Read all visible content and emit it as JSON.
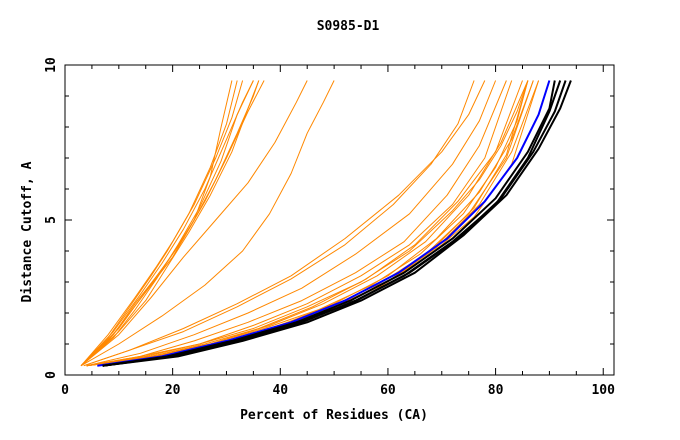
{
  "chart_data": {
    "type": "line",
    "title": "S0985-D1",
    "xlabel": "Percent of Residues (CA)",
    "ylabel": "Distance Cutoff, A",
    "xlim": [
      0,
      102
    ],
    "ylim": [
      0,
      10
    ],
    "x_ticks": [
      "0",
      "20",
      "40",
      "60",
      "80",
      "100"
    ],
    "y_ticks": [
      "0",
      "5",
      "10"
    ],
    "grid": false,
    "legend": "none",
    "colors": {
      "orange": "#ff8800",
      "black": "#000000",
      "blue": "#0000ff"
    },
    "series": [
      {
        "color": "orange",
        "points": [
          [
            3.0,
            0.3
          ],
          [
            8,
            1.3
          ],
          [
            13,
            2.5
          ],
          [
            17,
            3.5
          ],
          [
            20,
            4.3
          ],
          [
            24,
            5.5
          ],
          [
            28,
            7.0
          ],
          [
            31,
            8.3
          ],
          [
            33,
            9.5
          ]
        ]
      },
      {
        "color": "orange",
        "points": [
          [
            3.0,
            0.3
          ],
          [
            9,
            1.4
          ],
          [
            14,
            2.6
          ],
          [
            18,
            3.6
          ],
          [
            22,
            4.7
          ],
          [
            26,
            6.0
          ],
          [
            30,
            7.6
          ],
          [
            33,
            8.8
          ],
          [
            35,
            9.5
          ]
        ]
      },
      {
        "color": "orange",
        "points": [
          [
            3.0,
            0.3
          ],
          [
            8,
            1.2
          ],
          [
            12,
            2.2
          ],
          [
            16,
            3.2
          ],
          [
            19,
            4.0
          ],
          [
            23,
            5.2
          ],
          [
            27,
            6.7
          ],
          [
            30,
            8.1
          ],
          [
            32,
            9.5
          ]
        ]
      },
      {
        "color": "orange",
        "points": [
          [
            3.0,
            0.3
          ],
          [
            9,
            1.3
          ],
          [
            13,
            2.3
          ],
          [
            18,
            3.4
          ],
          [
            22,
            4.4
          ],
          [
            26,
            5.6
          ],
          [
            30,
            7.0
          ],
          [
            34,
            8.5
          ],
          [
            37,
            9.5
          ]
        ]
      },
      {
        "color": "orange",
        "points": [
          [
            3.0,
            0.3
          ],
          [
            10,
            1.5
          ],
          [
            15,
            2.7
          ],
          [
            20,
            3.9
          ],
          [
            24,
            5.0
          ],
          [
            28,
            6.3
          ],
          [
            32,
            7.8
          ],
          [
            35,
            9.0
          ],
          [
            36,
            9.5
          ]
        ]
      },
      {
        "color": "orange",
        "points": [
          [
            3.0,
            0.3
          ],
          [
            8,
            1.1
          ],
          [
            12,
            2.0
          ],
          [
            16,
            2.9
          ],
          [
            20,
            3.8
          ],
          [
            24,
            5.0
          ],
          [
            27,
            6.4
          ],
          [
            29,
            8.0
          ],
          [
            31,
            9.5
          ]
        ]
      },
      {
        "color": "orange",
        "points": [
          [
            3.0,
            0.3
          ],
          [
            9,
            1.2
          ],
          [
            13,
            2.1
          ],
          [
            17,
            3.1
          ],
          [
            21,
            4.2
          ],
          [
            25,
            5.4
          ],
          [
            29,
            6.9
          ],
          [
            32,
            8.4
          ],
          [
            35,
            9.5
          ]
        ]
      },
      {
        "color": "orange",
        "points": [
          [
            3.0,
            0.3
          ],
          [
            10,
            1.4
          ],
          [
            15,
            2.4
          ],
          [
            19,
            3.5
          ],
          [
            23,
            4.6
          ],
          [
            27,
            5.8
          ],
          [
            31,
            7.2
          ],
          [
            34,
            8.6
          ],
          [
            36,
            9.5
          ]
        ]
      },
      {
        "color": "orange",
        "points": [
          [
            3.0,
            0.3
          ],
          [
            10,
            1.3
          ],
          [
            16,
            2.5
          ],
          [
            22,
            3.8
          ],
          [
            28,
            5.0
          ],
          [
            34,
            6.2
          ],
          [
            39,
            7.5
          ],
          [
            43,
            8.8
          ],
          [
            45,
            9.5
          ]
        ]
      },
      {
        "color": "orange",
        "points": [
          [
            3.0,
            0.3
          ],
          [
            10,
            1.0
          ],
          [
            18,
            1.9
          ],
          [
            26,
            2.9
          ],
          [
            33,
            4.0
          ],
          [
            38,
            5.2
          ],
          [
            42,
            6.5
          ],
          [
            45,
            7.8
          ],
          [
            48,
            8.8
          ],
          [
            50,
            9.5
          ]
        ]
      },
      {
        "color": "orange",
        "points": [
          [
            3.5,
            0.3
          ],
          [
            12,
            0.8
          ],
          [
            22,
            1.5
          ],
          [
            32,
            2.3
          ],
          [
            42,
            3.2
          ],
          [
            52,
            4.4
          ],
          [
            62,
            5.8
          ],
          [
            70,
            7.2
          ],
          [
            75,
            8.4
          ],
          [
            78,
            9.5
          ]
        ]
      },
      {
        "color": "orange",
        "points": [
          [
            3.5,
            0.3
          ],
          [
            12,
            0.8
          ],
          [
            22,
            1.4
          ],
          [
            32,
            2.2
          ],
          [
            42,
            3.1
          ],
          [
            52,
            4.2
          ],
          [
            61,
            5.5
          ],
          [
            68,
            6.8
          ],
          [
            73,
            8.1
          ],
          [
            76,
            9.5
          ]
        ]
      },
      {
        "color": "orange",
        "points": [
          [
            4,
            0.3
          ],
          [
            14,
            0.7
          ],
          [
            24,
            1.3
          ],
          [
            34,
            2.0
          ],
          [
            44,
            2.8
          ],
          [
            54,
            3.9
          ],
          [
            64,
            5.2
          ],
          [
            72,
            6.8
          ],
          [
            77,
            8.2
          ],
          [
            80,
            9.5
          ]
        ]
      },
      {
        "color": "orange",
        "points": [
          [
            4,
            0.3
          ],
          [
            14,
            0.6
          ],
          [
            24,
            1.1
          ],
          [
            34,
            1.7
          ],
          [
            44,
            2.4
          ],
          [
            54,
            3.3
          ],
          [
            63,
            4.3
          ],
          [
            71,
            5.8
          ],
          [
            77,
            7.4
          ],
          [
            82,
            9.5
          ]
        ]
      },
      {
        "color": "orange",
        "points": [
          [
            4,
            0.3
          ],
          [
            15,
            0.6
          ],
          [
            25,
            1.0
          ],
          [
            35,
            1.6
          ],
          [
            45,
            2.3
          ],
          [
            55,
            3.2
          ],
          [
            64,
            4.2
          ],
          [
            72,
            5.5
          ],
          [
            78,
            7.0
          ],
          [
            83,
            9.5
          ]
        ]
      },
      {
        "color": "orange",
        "points": [
          [
            4,
            0.3
          ],
          [
            16,
            0.6
          ],
          [
            26,
            1.0
          ],
          [
            36,
            1.5
          ],
          [
            46,
            2.2
          ],
          [
            56,
            3.1
          ],
          [
            65,
            4.2
          ],
          [
            73,
            5.6
          ],
          [
            80,
            7.2
          ],
          [
            85,
            9.5
          ]
        ]
      },
      {
        "color": "orange",
        "points": [
          [
            4,
            0.3
          ],
          [
            16,
            0.6
          ],
          [
            27,
            1.0
          ],
          [
            38,
            1.6
          ],
          [
            48,
            2.3
          ],
          [
            58,
            3.2
          ],
          [
            67,
            4.3
          ],
          [
            75,
            5.8
          ],
          [
            81,
            7.5
          ],
          [
            86,
            9.5
          ]
        ]
      },
      {
        "color": "orange",
        "points": [
          [
            4,
            0.3
          ],
          [
            17,
            0.6
          ],
          [
            28,
            1.0
          ],
          [
            38,
            1.5
          ],
          [
            48,
            2.1
          ],
          [
            58,
            2.9
          ],
          [
            67,
            3.9
          ],
          [
            75,
            5.2
          ],
          [
            82,
            7.0
          ],
          [
            87,
            9.5
          ]
        ]
      },
      {
        "color": "orange",
        "points": [
          [
            4,
            0.3
          ],
          [
            17,
            0.6
          ],
          [
            28,
            1.0
          ],
          [
            39,
            1.5
          ],
          [
            49,
            2.1
          ],
          [
            59,
            2.9
          ],
          [
            68,
            4.0
          ],
          [
            76,
            5.4
          ],
          [
            82,
            7.1
          ],
          [
            86,
            9.5
          ]
        ]
      },
      {
        "color": "orange",
        "points": [
          [
            4,
            0.3
          ],
          [
            18,
            0.6
          ],
          [
            30,
            1.1
          ],
          [
            40,
            1.6
          ],
          [
            50,
            2.3
          ],
          [
            60,
            3.2
          ],
          [
            69,
            4.4
          ],
          [
            77,
            5.9
          ],
          [
            83,
            7.6
          ],
          [
            87,
            9.5
          ]
        ]
      },
      {
        "color": "orange",
        "points": [
          [
            4,
            0.3
          ],
          [
            18,
            0.6
          ],
          [
            29,
            1.0
          ],
          [
            39,
            1.5
          ],
          [
            49,
            2.1
          ],
          [
            59,
            2.9
          ],
          [
            68,
            3.9
          ],
          [
            76,
            5.1
          ],
          [
            83,
            6.8
          ],
          [
            88,
            9.5
          ]
        ]
      },
      {
        "color": "orange",
        "points": [
          [
            4,
            0.3
          ],
          [
            16,
            0.6
          ],
          [
            27,
            1.0
          ],
          [
            37,
            1.5
          ],
          [
            47,
            2.1
          ],
          [
            57,
            2.9
          ],
          [
            66,
            3.9
          ],
          [
            74,
            5.2
          ],
          [
            80,
            6.7
          ],
          [
            84,
            8.2
          ],
          [
            86,
            9.5
          ]
        ]
      },
      {
        "color": "orange",
        "points": [
          [
            4,
            0.3
          ],
          [
            18,
            0.6
          ],
          [
            29,
            1.0
          ],
          [
            40,
            1.5
          ],
          [
            50,
            2.2
          ],
          [
            60,
            3.0
          ],
          [
            69,
            4.1
          ],
          [
            77,
            5.5
          ],
          [
            83,
            7.2
          ],
          [
            88,
            9.5
          ]
        ]
      },
      {
        "color": "orange",
        "points": [
          [
            4,
            0.3
          ],
          [
            14,
            0.6
          ],
          [
            25,
            1.0
          ],
          [
            35,
            1.5
          ],
          [
            45,
            2.2
          ],
          [
            55,
            3.0
          ],
          [
            64,
            4.0
          ],
          [
            72,
            5.3
          ],
          [
            77,
            6.3
          ],
          [
            81,
            7.4
          ],
          [
            84,
            8.5
          ],
          [
            86,
            9.5
          ]
        ]
      },
      {
        "color": "blue",
        "points": [
          [
            6,
            0.3
          ],
          [
            18,
            0.6
          ],
          [
            30,
            1.1
          ],
          [
            42,
            1.7
          ],
          [
            52,
            2.4
          ],
          [
            62,
            3.3
          ],
          [
            71,
            4.4
          ],
          [
            78,
            5.6
          ],
          [
            84,
            7.0
          ],
          [
            88,
            8.4
          ],
          [
            90,
            9.5
          ]
        ]
      },
      {
        "color": "black",
        "points": [
          [
            7,
            0.3
          ],
          [
            20,
            0.6
          ],
          [
            32,
            1.1
          ],
          [
            44,
            1.7
          ],
          [
            54,
            2.4
          ],
          [
            64,
            3.3
          ],
          [
            73,
            4.4
          ],
          [
            81,
            5.7
          ],
          [
            87,
            7.2
          ],
          [
            91,
            8.5
          ],
          [
            93,
            9.5
          ]
        ]
      },
      {
        "color": "black",
        "points": [
          [
            7,
            0.3
          ],
          [
            20,
            0.6
          ],
          [
            32,
            1.1
          ],
          [
            43,
            1.7
          ],
          [
            53,
            2.3
          ],
          [
            63,
            3.2
          ],
          [
            72,
            4.3
          ],
          [
            80,
            5.5
          ],
          [
            86,
            7.0
          ],
          [
            90,
            8.5
          ],
          [
            92,
            9.5
          ]
        ]
      },
      {
        "color": "black",
        "points": [
          [
            7,
            0.3
          ],
          [
            21,
            0.6
          ],
          [
            33,
            1.1
          ],
          [
            45,
            1.7
          ],
          [
            55,
            2.4
          ],
          [
            65,
            3.3
          ],
          [
            74,
            4.5
          ],
          [
            82,
            5.8
          ],
          [
            88,
            7.3
          ],
          [
            92,
            8.6
          ],
          [
            94,
            9.5
          ]
        ]
      },
      {
        "color": "black",
        "points": [
          [
            7,
            0.3
          ],
          [
            19,
            0.6
          ],
          [
            31,
            1.1
          ],
          [
            43,
            1.7
          ],
          [
            53,
            2.4
          ],
          [
            63,
            3.3
          ],
          [
            72,
            4.4
          ],
          [
            80,
            5.7
          ],
          [
            86,
            7.2
          ],
          [
            90,
            8.6
          ],
          [
            91,
            9.5
          ]
        ]
      }
    ]
  }
}
